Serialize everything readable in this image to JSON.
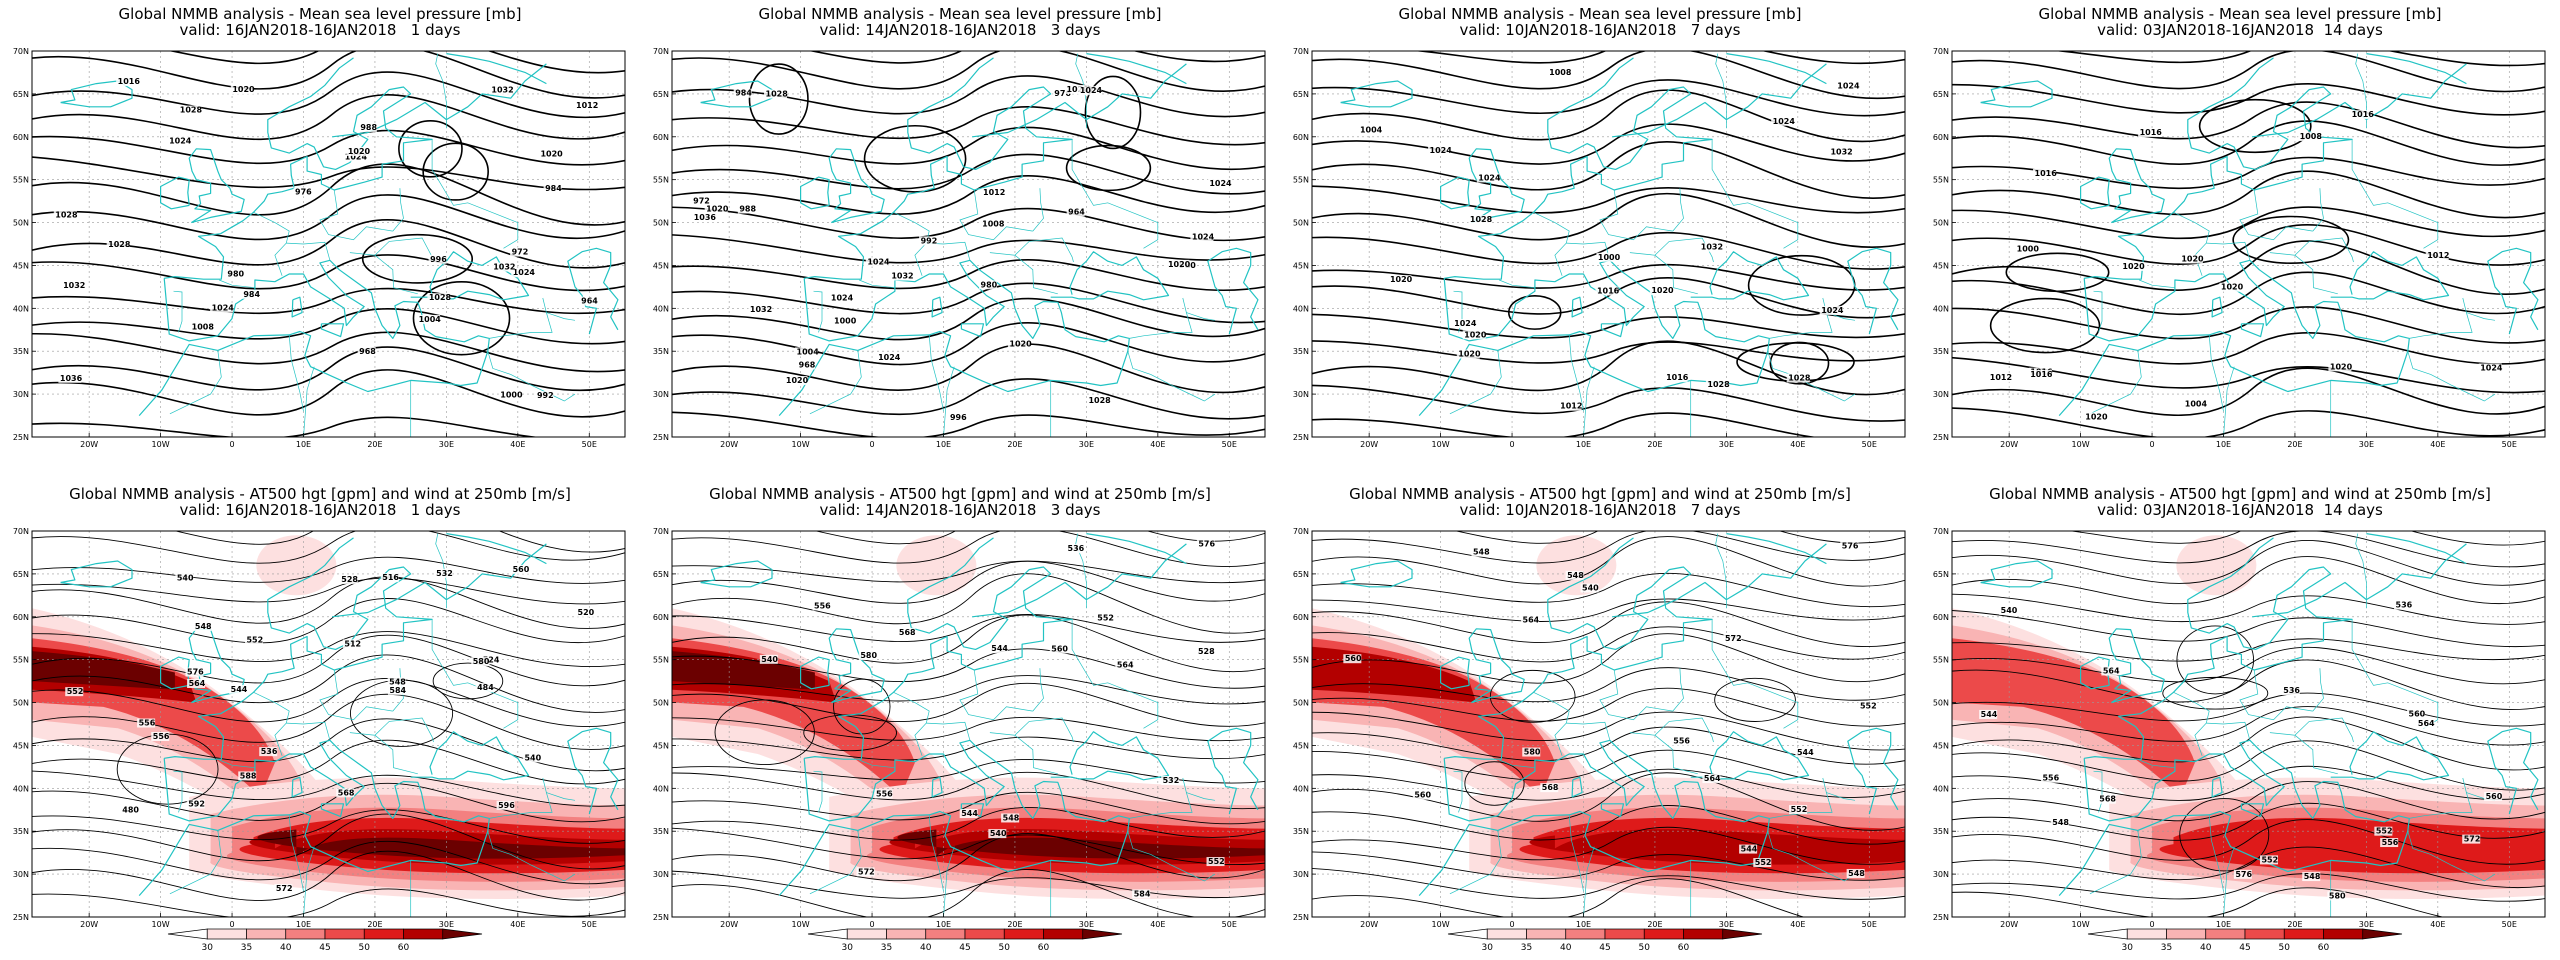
{
  "colors": {
    "coast": "#22c3c3",
    "contour": "#000000",
    "grid": "#9a9a9a",
    "wind_scale": [
      "#ffffff",
      "#fde0e0",
      "#f9b4b4",
      "#f38080",
      "#ec4a4a",
      "#de1a1a",
      "#b30000",
      "#6b0000"
    ]
  },
  "axes": {
    "lat_labels": [
      "70N",
      "65N",
      "60N",
      "55N",
      "50N",
      "45N",
      "40N",
      "35N",
      "30N",
      "25N"
    ],
    "lon_labels": [
      "20W",
      "10W",
      "0",
      "10E",
      "20E",
      "30E",
      "40E",
      "50E"
    ]
  },
  "colorbar": {
    "ticks": [
      "30",
      "35",
      "40",
      "45",
      "50",
      "60"
    ]
  },
  "top_row": [
    {
      "title": "Global NMMB analysis - Mean sea level pressure [mb]",
      "valid": "valid: 16JAN2018-16JAN2018   1 days",
      "labels": [
        "980",
        "984",
        "964",
        "968",
        "972",
        "976",
        "984",
        "988",
        "992",
        "996",
        "1000",
        "1004",
        "1008",
        "1012",
        "1016",
        "1020",
        "1020",
        "1024",
        "1028",
        "1028",
        "1024",
        "1024",
        "1032",
        "1028",
        "1032",
        "1036",
        "1028",
        "1024",
        "1020",
        "1032"
      ]
    },
    {
      "title": "Global NMMB analysis - Mean sea level pressure [mb]",
      "valid": "valid: 14JAN2018-16JAN2018   3 days",
      "labels": [
        "980",
        "964",
        "968",
        "972",
        "976",
        "980",
        "984",
        "988",
        "992",
        "996",
        "1000",
        "1004",
        "1008",
        "1012",
        "1020",
        "1020",
        "1024",
        "1020",
        "1024",
        "1028",
        "1032",
        "1036",
        "1024",
        "1024",
        "1020",
        "1024",
        "1020",
        "1032",
        "1028",
        "1024"
      ]
    },
    {
      "title": "Global NMMB analysis - Mean sea level pressure [mb]",
      "valid": "valid: 10JAN2018-16JAN2018   7 days",
      "labels": [
        "1000",
        "1004",
        "1008",
        "1012",
        "1016",
        "1016",
        "1020",
        "1020",
        "1024",
        "1028",
        "1032",
        "1028",
        "1024",
        "1020",
        "1024",
        "1024",
        "1024",
        "1028",
        "1032",
        "1020",
        "1024"
      ]
    },
    {
      "title": "Global NMMB analysis - Mean sea level pressure [mb]",
      "valid": "valid: 03JAN2018-16JAN2018  14 days",
      "labels": [
        "1000",
        "1004",
        "1008",
        "1012",
        "1016",
        "1016",
        "1020",
        "1016",
        "1020",
        "1012",
        "1016",
        "1020",
        "1016",
        "1020",
        "1020",
        "1024"
      ]
    }
  ],
  "bottom_row": [
    {
      "title": "Global NMMB analysis - AT500 hgt [gpm] and wind at 250mb [m/s]",
      "valid": "valid: 16JAN2018-16JAN2018   1 days",
      "labels": [
        "480",
        "484",
        "512",
        "516",
        "520",
        "524",
        "528",
        "532",
        "536",
        "540",
        "544",
        "548",
        "552",
        "556",
        "560",
        "564",
        "568",
        "572",
        "576",
        "580",
        "584",
        "588",
        "592",
        "596",
        "540",
        "548",
        "552",
        "556"
      ]
    },
    {
      "title": "Global NMMB analysis - AT500 hgt [gpm] and wind at 250mb [m/s]",
      "valid": "valid: 14JAN2018-16JAN2018   3 days",
      "labels": [
        "528",
        "532",
        "536",
        "540",
        "544",
        "548",
        "552",
        "556",
        "560",
        "564",
        "568",
        "572",
        "576",
        "580",
        "584",
        "552",
        "556",
        "540",
        "544"
      ]
    },
    {
      "title": "Global NMMB analysis - AT500 hgt [gpm] and wind at 250mb [m/s]",
      "valid": "valid: 10JAN2018-16JAN2018   7 days",
      "labels": [
        "544",
        "548",
        "552",
        "556",
        "560",
        "564",
        "568",
        "572",
        "576",
        "580",
        "548",
        "552",
        "544",
        "540",
        "552",
        "548",
        "560",
        "564"
      ]
    },
    {
      "title": "Global NMMB analysis - AT500 hgt [gpm] and wind at 250mb [m/s]",
      "valid": "valid: 03JAN2018-16JAN2018  14 days",
      "labels": [
        "536",
        "540",
        "544",
        "548",
        "552",
        "556",
        "560",
        "564",
        "568",
        "572",
        "576",
        "580",
        "536",
        "548",
        "552",
        "556",
        "560",
        "564"
      ]
    }
  ]
}
